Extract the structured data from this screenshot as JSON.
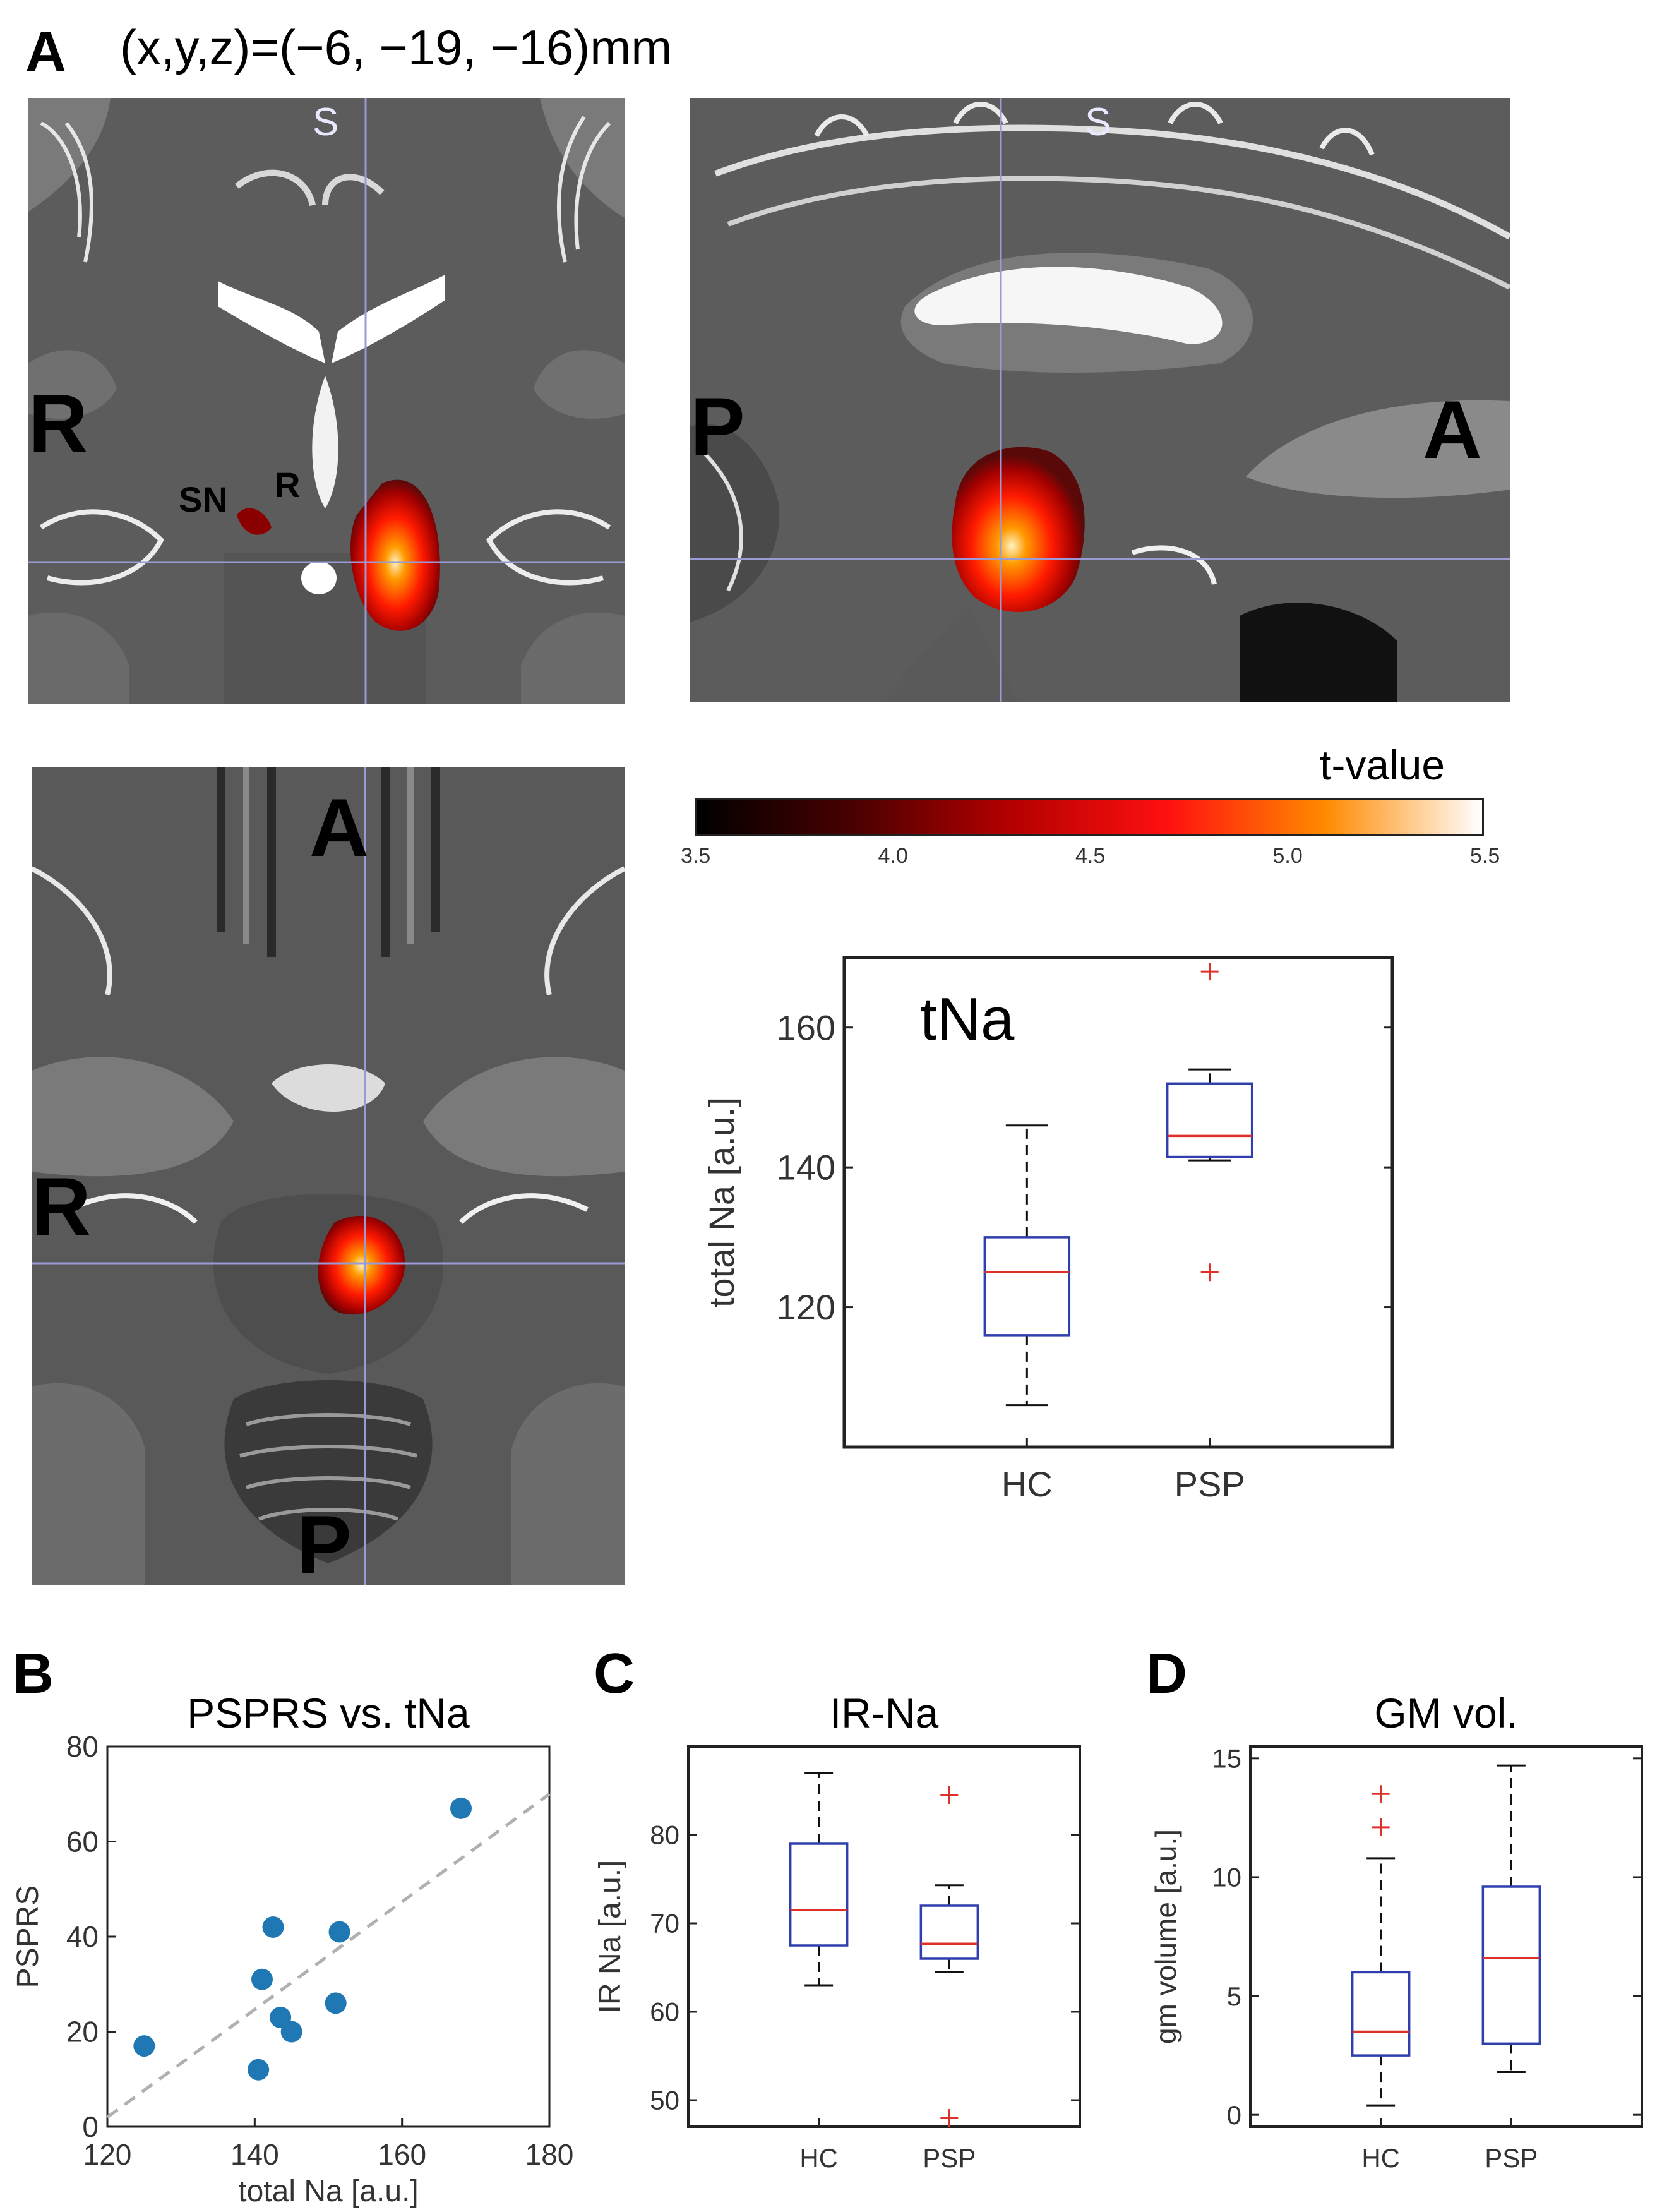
{
  "panel_a": {
    "letter": "A",
    "coords": "(x,y,z)=(−6, −19, −16)mm",
    "coronal": {
      "top": "S",
      "left": "R",
      "sn": "SN",
      "r": "R"
    },
    "sagittal": {
      "top": "S",
      "left": "P",
      "right": "A"
    },
    "axial": {
      "top": "A",
      "left": "R",
      "bottom": "P"
    },
    "colorbar": {
      "title": "t-value",
      "ticks": [
        "3.5",
        "4.0",
        "4.5",
        "5.0",
        "5.5"
      ],
      "colors": [
        "#000000",
        "#4a0000",
        "#b40000",
        "#ff1010",
        "#ff8a00",
        "#ffffff"
      ]
    }
  },
  "panel_b": {
    "letter": "B"
  },
  "panel_c": {
    "letter": "C"
  },
  "panel_d": {
    "letter": "D"
  },
  "chart_data": [
    {
      "id": "tna-box",
      "type": "box",
      "title": "tNa",
      "xlabel": "",
      "ylabel": "total Na [a.u.]",
      "categories": [
        "HC",
        "PSP"
      ],
      "ylim": [
        100,
        170
      ],
      "yticks": [
        120,
        140,
        160
      ],
      "boxes": [
        {
          "whisker_low": 106,
          "q1": 116,
          "median": 125,
          "q3": 130,
          "whisker_high": 146,
          "outliers": []
        },
        {
          "whisker_low": 141,
          "q1": 141.5,
          "median": 144.5,
          "q3": 152,
          "whisker_high": 154,
          "outliers": [
            168,
            125
          ]
        }
      ]
    },
    {
      "id": "psprs-scatter",
      "type": "scatter",
      "title": "PSPRS vs. tNa",
      "xlabel": "total Na [a.u.]",
      "ylabel": "PSPRS",
      "xlim": [
        120,
        180
      ],
      "ylim": [
        0,
        80
      ],
      "xticks": [
        120,
        140,
        160,
        180
      ],
      "yticks": [
        0,
        20,
        40,
        60,
        80
      ],
      "points": [
        {
          "x": 125,
          "y": 17
        },
        {
          "x": 140.5,
          "y": 12
        },
        {
          "x": 141,
          "y": 31
        },
        {
          "x": 142.5,
          "y": 42
        },
        {
          "x": 143.5,
          "y": 23
        },
        {
          "x": 145,
          "y": 20
        },
        {
          "x": 151,
          "y": 26
        },
        {
          "x": 151.5,
          "y": 41
        },
        {
          "x": 168,
          "y": 67
        }
      ],
      "fit_line": {
        "x": [
          120,
          180
        ],
        "y": [
          2,
          70
        ]
      },
      "marker_color": "#1f77b4",
      "line_color": "#b0b0b0"
    },
    {
      "id": "irna-box",
      "type": "box",
      "title": "IR-Na",
      "xlabel": "",
      "ylabel": "IR Na [a.u.]",
      "categories": [
        "HC",
        "PSP"
      ],
      "ylim": [
        47,
        90
      ],
      "yticks": [
        50,
        60,
        70,
        80
      ],
      "boxes": [
        {
          "whisker_low": 63,
          "q1": 67.5,
          "median": 71.5,
          "q3": 79,
          "whisker_high": 87,
          "outliers": []
        },
        {
          "whisker_low": 64.5,
          "q1": 66,
          "median": 67.7,
          "q3": 72,
          "whisker_high": 74.3,
          "outliers": [
            84.5,
            48
          ]
        }
      ]
    },
    {
      "id": "gm-box",
      "type": "box",
      "title": "GM vol.",
      "xlabel": "",
      "ylabel": "gm volume [a.u.]",
      "categories": [
        "HC",
        "PSP"
      ],
      "ylim": [
        -0.5,
        15.5
      ],
      "yticks": [
        0,
        5,
        10,
        15
      ],
      "boxes": [
        {
          "whisker_low": 0.4,
          "q1": 2.5,
          "median": 3.5,
          "q3": 6,
          "whisker_high": 10.8,
          "outliers": [
            12.1,
            13.5
          ]
        },
        {
          "whisker_low": 1.8,
          "q1": 3,
          "median": 6.6,
          "q3": 9.6,
          "whisker_high": 14.7,
          "outliers": []
        }
      ]
    }
  ]
}
